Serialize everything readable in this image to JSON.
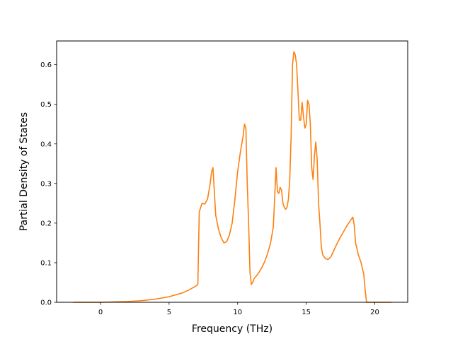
{
  "chart_data": {
    "type": "line",
    "title": "",
    "xlabel": "Frequency (THz)",
    "ylabel": "Partial Density of States",
    "xlim": [
      -3.2,
      22.4
    ],
    "ylim": [
      0.0,
      0.66
    ],
    "xticks": [
      0,
      5,
      10,
      15,
      20
    ],
    "yticks": [
      0.0,
      0.1,
      0.2,
      0.3,
      0.4,
      0.5,
      0.6
    ],
    "xtick_labels": [
      "0",
      "5",
      "10",
      "15",
      "20"
    ],
    "ytick_labels": [
      "0.0",
      "0.1",
      "0.2",
      "0.3",
      "0.4",
      "0.5",
      "0.6"
    ],
    "grid": false,
    "legend": "none",
    "series": [
      {
        "color": "#ff7f0e",
        "x": [
          -2.0,
          0.0,
          1.0,
          2.0,
          3.0,
          4.0,
          5.0,
          6.0,
          6.5,
          7.0,
          7.1,
          7.2,
          7.4,
          7.6,
          7.8,
          8.0,
          8.1,
          8.2,
          8.3,
          8.4,
          8.6,
          8.8,
          9.0,
          9.2,
          9.4,
          9.6,
          9.8,
          10.0,
          10.2,
          10.4,
          10.5,
          10.6,
          10.7,
          10.8,
          10.9,
          11.0,
          11.1,
          11.2,
          11.4,
          11.6,
          11.8,
          12.0,
          12.2,
          12.4,
          12.6,
          12.8,
          12.9,
          13.0,
          13.1,
          13.2,
          13.3,
          13.4,
          13.5,
          13.6,
          13.7,
          13.8,
          13.9,
          14.0,
          14.1,
          14.2,
          14.3,
          14.4,
          14.5,
          14.6,
          14.7,
          14.8,
          14.9,
          15.0,
          15.1,
          15.2,
          15.3,
          15.4,
          15.5,
          15.6,
          15.7,
          15.8,
          15.9,
          16.0,
          16.1,
          16.2,
          16.4,
          16.6,
          16.8,
          17.0,
          17.2,
          17.5,
          18.0,
          18.4,
          18.5,
          18.6,
          18.8,
          19.0,
          19.2,
          19.3,
          19.4,
          20.0,
          21.2
        ],
        "values": [
          0.0,
          0.0,
          0.001,
          0.002,
          0.004,
          0.008,
          0.014,
          0.024,
          0.032,
          0.042,
          0.046,
          0.228,
          0.25,
          0.248,
          0.26,
          0.3,
          0.33,
          0.34,
          0.28,
          0.22,
          0.185,
          0.163,
          0.15,
          0.153,
          0.17,
          0.2,
          0.26,
          0.33,
          0.38,
          0.42,
          0.45,
          0.44,
          0.3,
          0.2,
          0.075,
          0.045,
          0.05,
          0.06,
          0.068,
          0.078,
          0.09,
          0.105,
          0.125,
          0.15,
          0.19,
          0.34,
          0.28,
          0.275,
          0.29,
          0.283,
          0.25,
          0.24,
          0.235,
          0.24,
          0.26,
          0.31,
          0.42,
          0.6,
          0.633,
          0.625,
          0.6,
          0.53,
          0.46,
          0.46,
          0.505,
          0.47,
          0.44,
          0.45,
          0.51,
          0.5,
          0.45,
          0.34,
          0.31,
          0.37,
          0.405,
          0.36,
          0.25,
          0.2,
          0.14,
          0.12,
          0.11,
          0.108,
          0.115,
          0.13,
          0.145,
          0.165,
          0.195,
          0.215,
          0.195,
          0.15,
          0.12,
          0.1,
          0.07,
          0.03,
          0.0,
          0.0,
          0.0
        ]
      }
    ]
  }
}
